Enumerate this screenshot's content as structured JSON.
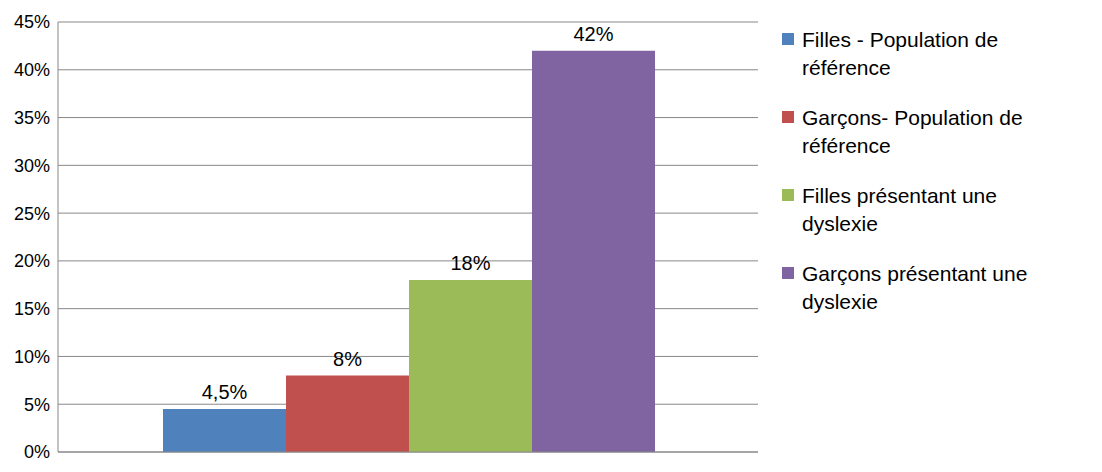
{
  "chart_data": {
    "type": "bar",
    "categories": [
      null
    ],
    "series": [
      {
        "name": "Filles - Population de référence",
        "color": "#4f81bd",
        "values": [
          4.5
        ],
        "value_labels": [
          "4,5%"
        ]
      },
      {
        "name": "Garçons- Population de référence",
        "color": "#c0504d",
        "values": [
          8
        ],
        "value_labels": [
          "8%"
        ]
      },
      {
        "name": "Filles présentant une dyslexie",
        "color": "#9bbb59",
        "values": [
          18
        ],
        "value_labels": [
          "18%"
        ]
      },
      {
        "name": "Garçons présentant une dyslexie",
        "color": "#8064a2",
        "values": [
          42
        ],
        "value_labels": [
          "42%"
        ]
      }
    ],
    "ylim": [
      0,
      45
    ],
    "yticks": [
      {
        "value": 0,
        "label": "0%"
      },
      {
        "value": 5,
        "label": "5%"
      },
      {
        "value": 10,
        "label": "10%"
      },
      {
        "value": 15,
        "label": "15%"
      },
      {
        "value": 20,
        "label": "20%"
      },
      {
        "value": 25,
        "label": "25%"
      },
      {
        "value": 30,
        "label": "30%"
      },
      {
        "value": 35,
        "label": "35%"
      },
      {
        "value": 40,
        "label": "40%"
      },
      {
        "value": 45,
        "label": "45%"
      }
    ],
    "grid": true,
    "legend": "right",
    "data_labels": true
  }
}
